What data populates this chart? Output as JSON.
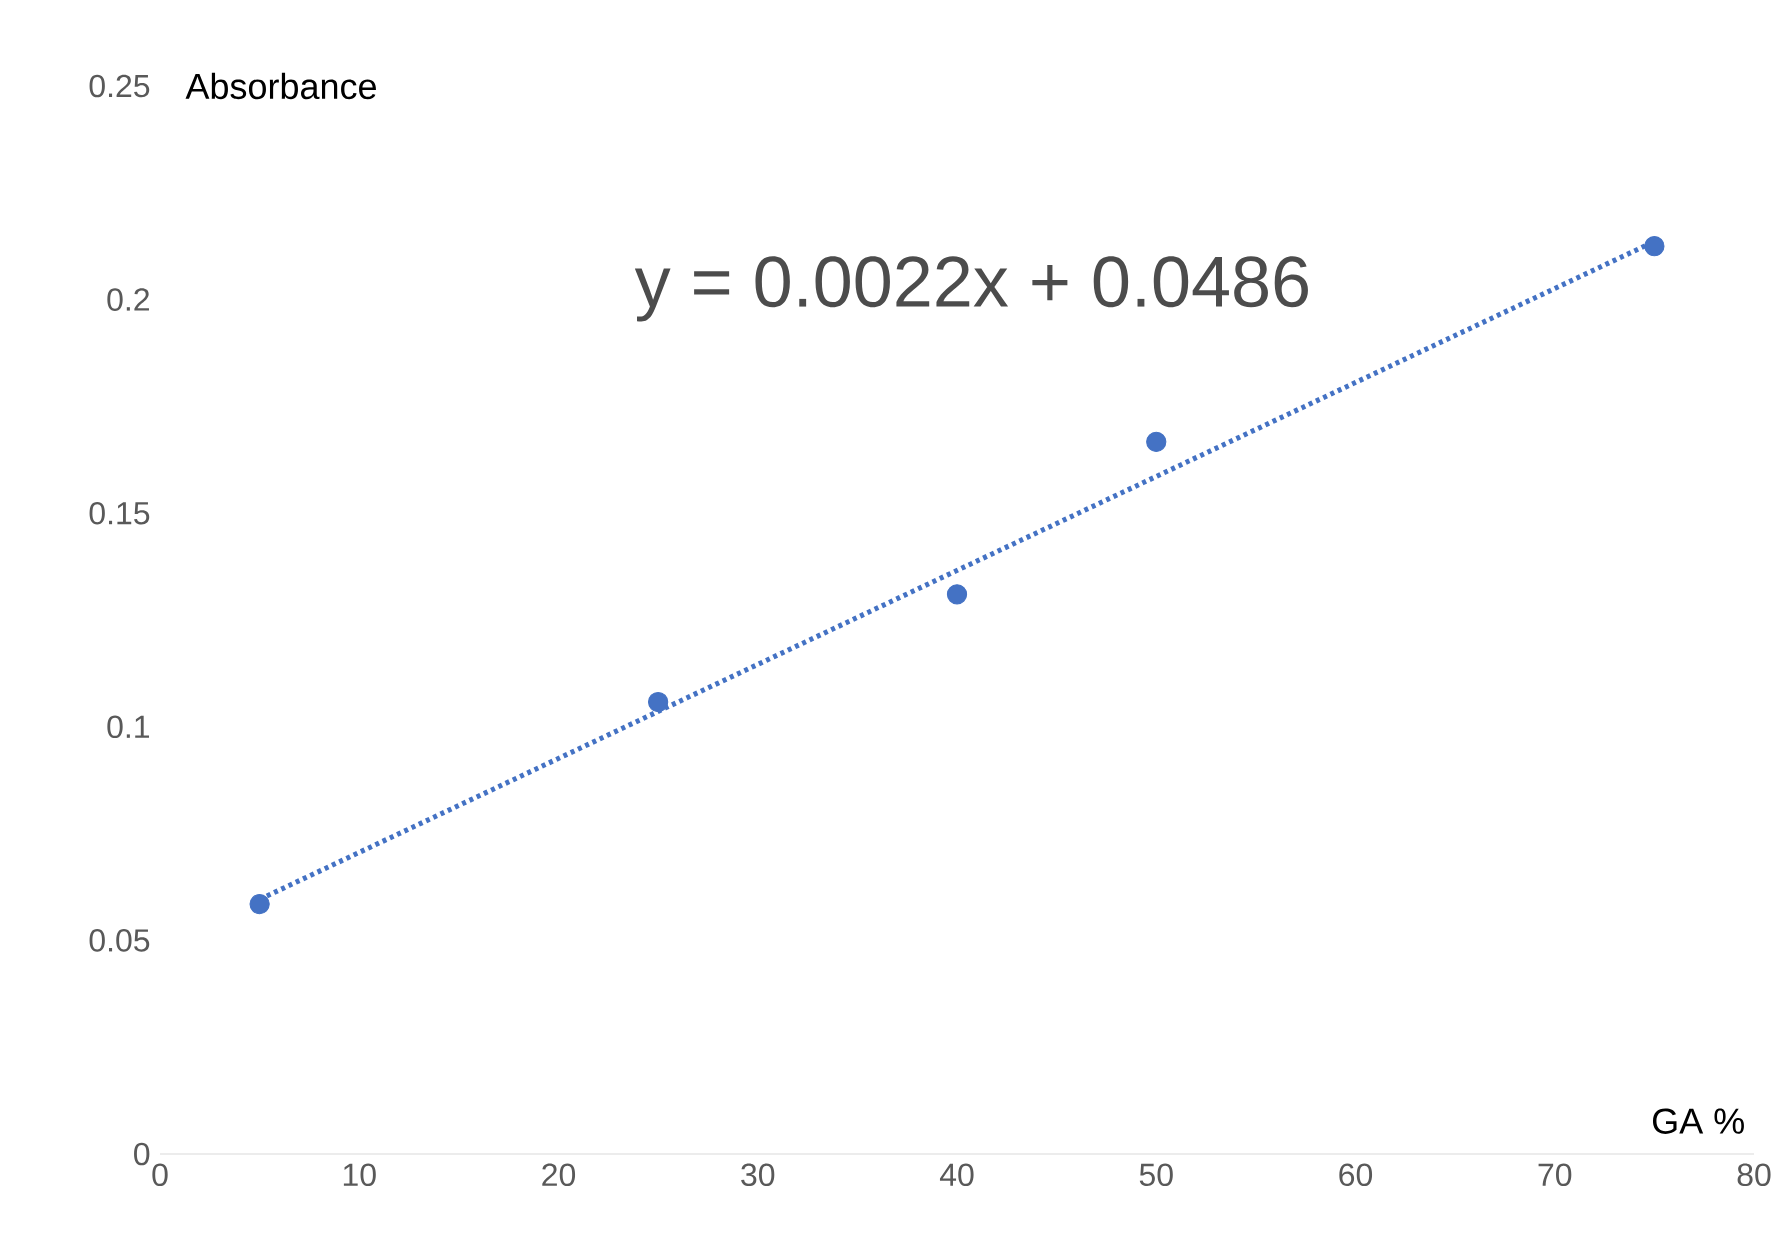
{
  "chart_data": {
    "type": "scatter",
    "xlabel": "GA %",
    "ylabel": "Absorbance",
    "annotations": [
      "y = 0.0022x + 0.0486"
    ],
    "xlim": [
      0,
      80
    ],
    "xticks": [
      0,
      10,
      20,
      30,
      40,
      50,
      60,
      70,
      80
    ],
    "ylim": [
      0,
      0.25
    ],
    "yticks": [
      0,
      0.05,
      0.1,
      0.15,
      0.2,
      0.25
    ],
    "grid": false,
    "series": [
      {
        "color": "#4472c4",
        "marker": "circle",
        "x": [
          5,
          25,
          40,
          50,
          75
        ],
        "values": [
          0.0585,
          0.1058,
          0.131,
          0.1667,
          0.2125
        ]
      },
      {
        "type": "line",
        "color": "#4472c4",
        "line_style": "dotted",
        "marker": "none",
        "x": [
          5,
          75
        ],
        "values": [
          0.0596,
          0.2136
        ]
      }
    ]
  }
}
